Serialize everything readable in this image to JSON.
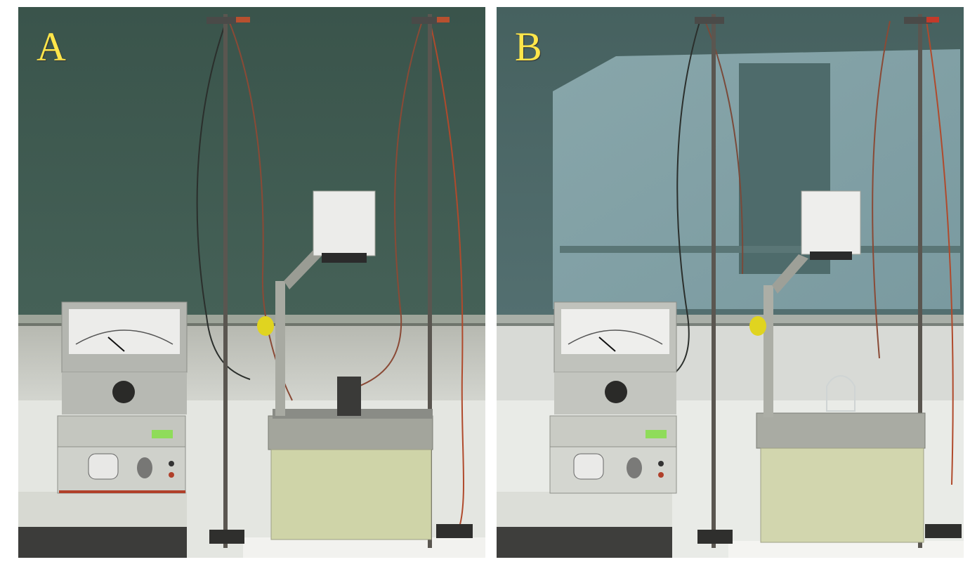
{
  "panels": [
    {
      "label": "A"
    },
    {
      "label": "B"
    }
  ],
  "colors": {
    "board_a": "#3e5a50",
    "board_b": "#4c6a6e",
    "projected_light": "#7e9ea4",
    "wall": "#c8cbc6",
    "bench": "#e9ebe6",
    "lamp_base": "#c9cfa4",
    "label": "#ffe64a"
  }
}
